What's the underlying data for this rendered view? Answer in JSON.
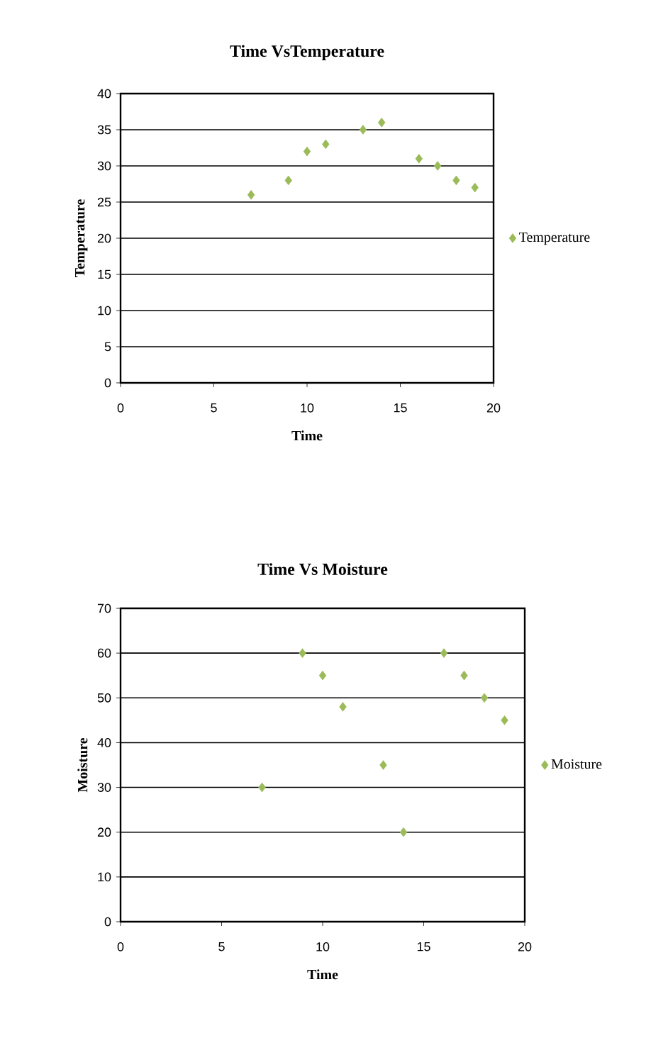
{
  "chart_data": [
    {
      "type": "scatter",
      "title": "Time VsTemperature",
      "xlabel": "Time",
      "ylabel": "Temperature",
      "xlim": [
        0,
        20
      ],
      "ylim": [
        0,
        40
      ],
      "xticks": [
        0,
        5,
        10,
        15,
        20
      ],
      "yticks": [
        0,
        5,
        10,
        15,
        20,
        25,
        30,
        35,
        40
      ],
      "grid": "y",
      "legend": "right",
      "marker": "diamond",
      "series": [
        {
          "name": "Temperature",
          "color": "#9bbb59",
          "x": [
            7,
            9,
            10,
            11,
            13,
            14,
            16,
            17,
            18,
            19
          ],
          "values": [
            26,
            28,
            32,
            33,
            35,
            36,
            31,
            30,
            28,
            27
          ]
        }
      ]
    },
    {
      "type": "scatter",
      "title": "Time Vs Moisture",
      "xlabel": "Time",
      "ylabel": "Moisture",
      "xlim": [
        0,
        20
      ],
      "ylim": [
        0,
        70
      ],
      "xticks": [
        0,
        5,
        10,
        15,
        20
      ],
      "yticks": [
        0,
        10,
        20,
        30,
        40,
        50,
        60,
        70
      ],
      "grid": "y",
      "legend": "right",
      "marker": "diamond",
      "series": [
        {
          "name": "Moisture",
          "color": "#9bbb59",
          "x": [
            7,
            9,
            10,
            11,
            13,
            14,
            16,
            17,
            18,
            19
          ],
          "values": [
            30,
            60,
            55,
            48,
            35,
            20,
            60,
            55,
            50,
            45
          ]
        }
      ]
    }
  ]
}
